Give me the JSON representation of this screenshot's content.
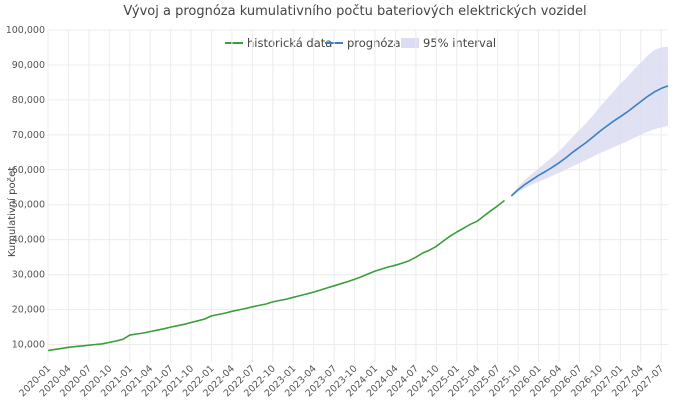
{
  "chart_data": {
    "type": "line",
    "title": "Vývoj a prognóza kumulativního počtu bateriových elektrických vozidel",
    "xlabel": "",
    "ylabel": "Kumulativní počet",
    "ylim": [
      5000,
      100000
    ],
    "yticks": [
      10000,
      20000,
      30000,
      40000,
      50000,
      60000,
      70000,
      80000,
      90000,
      100000
    ],
    "ytick_labels": [
      "10,000",
      "20,000",
      "30,000",
      "40,000",
      "50,000",
      "60,000",
      "70,000",
      "80,000",
      "90,000",
      "100,000"
    ],
    "xticks": [
      "2020-01",
      "2020-04",
      "2020-07",
      "2020-10",
      "2021-01",
      "2021-04",
      "2021-07",
      "2021-10",
      "2022-01",
      "2022-04",
      "2022-07",
      "2022-10",
      "2023-01",
      "2023-04",
      "2023-07",
      "2023-10",
      "2024-01",
      "2024-04",
      "2024-07",
      "2024-10",
      "2025-01",
      "2025-04",
      "2025-07",
      "2025-10",
      "2026-01",
      "2026-04",
      "2026-07",
      "2026-10",
      "2027-01",
      "2027-04",
      "2027-07"
    ],
    "grid": true,
    "legend_position": "top-center",
    "series": [
      {
        "name": "historická data",
        "color": "#3a9e3a",
        "x": [
          "2020-01",
          "2020-02",
          "2020-03",
          "2020-04",
          "2020-05",
          "2020-06",
          "2020-07",
          "2020-08",
          "2020-09",
          "2020-10",
          "2020-11",
          "2020-12",
          "2021-01",
          "2021-02",
          "2021-03",
          "2021-04",
          "2021-05",
          "2021-06",
          "2021-07",
          "2021-08",
          "2021-09",
          "2021-10",
          "2021-11",
          "2021-12",
          "2022-01",
          "2022-02",
          "2022-03",
          "2022-04",
          "2022-05",
          "2022-06",
          "2022-07",
          "2022-08",
          "2022-09",
          "2022-10",
          "2022-11",
          "2022-12",
          "2023-01",
          "2023-02",
          "2023-03",
          "2023-04",
          "2023-05",
          "2023-06",
          "2023-07",
          "2023-08",
          "2023-09",
          "2023-10",
          "2023-11",
          "2023-12",
          "2024-01",
          "2024-02",
          "2024-03",
          "2024-04",
          "2024-05",
          "2024-06",
          "2024-07",
          "2024-08",
          "2024-09",
          "2024-10",
          "2024-11",
          "2024-12",
          "2025-01",
          "2025-02",
          "2025-03",
          "2025-04",
          "2025-05",
          "2025-06",
          "2025-07",
          "2025-08"
        ],
        "values": [
          8300,
          8600,
          8900,
          9200,
          9400,
          9600,
          9800,
          10000,
          10200,
          10600,
          11000,
          11500,
          12700,
          13000,
          13300,
          13700,
          14100,
          14500,
          15000,
          15400,
          15800,
          16300,
          16800,
          17300,
          18200,
          18600,
          19000,
          19500,
          19900,
          20300,
          20800,
          21200,
          21600,
          22200,
          22600,
          23000,
          23500,
          24000,
          24500,
          25000,
          25600,
          26200,
          26800,
          27400,
          28000,
          28700,
          29400,
          30200,
          31000,
          31600,
          32200,
          32700,
          33300,
          34000,
          35000,
          36200,
          37000,
          38100,
          39600,
          41000,
          42200,
          43300,
          44400,
          45300,
          46800,
          48300,
          49700,
          51200
        ]
      },
      {
        "name": "prognóza",
        "color": "#3c7fc2",
        "x": [
          "2025-09",
          "2025-10",
          "2025-11",
          "2025-12",
          "2026-01",
          "2026-02",
          "2026-03",
          "2026-04",
          "2026-05",
          "2026-06",
          "2026-07",
          "2026-08",
          "2026-09",
          "2026-10",
          "2026-11",
          "2026-12",
          "2027-01",
          "2027-02",
          "2027-03",
          "2027-04",
          "2027-05",
          "2027-06",
          "2027-07",
          "2027-08"
        ],
        "values": [
          52500,
          54300,
          55800,
          57100,
          58400,
          59500,
          60700,
          62000,
          63400,
          65000,
          66400,
          67800,
          69400,
          71000,
          72500,
          73900,
          75200,
          76500,
          78000,
          79500,
          81000,
          82300,
          83300,
          84000
        ]
      }
    ],
    "interval": {
      "name": "95% interval",
      "color": "#dcdcf2",
      "x": [
        "2025-09",
        "2025-10",
        "2025-11",
        "2025-12",
        "2026-01",
        "2026-02",
        "2026-03",
        "2026-04",
        "2026-05",
        "2026-06",
        "2026-07",
        "2026-08",
        "2026-09",
        "2026-10",
        "2026-11",
        "2026-12",
        "2027-01",
        "2027-02",
        "2027-03",
        "2027-04",
        "2027-05",
        "2027-06",
        "2027-07",
        "2027-08"
      ],
      "lower": [
        52200,
        53600,
        54800,
        55700,
        56600,
        57400,
        58300,
        59100,
        60000,
        61000,
        61900,
        62800,
        63800,
        64800,
        65600,
        66400,
        67300,
        68100,
        69100,
        70000,
        70900,
        71600,
        72100,
        72600
      ],
      "upper": [
        52800,
        55200,
        57100,
        58800,
        60400,
        62000,
        63600,
        65300,
        67300,
        69400,
        71400,
        73400,
        75600,
        78000,
        80200,
        82400,
        84600,
        86500,
        88600,
        90600,
        92700,
        94300,
        95000,
        95200
      ]
    }
  }
}
